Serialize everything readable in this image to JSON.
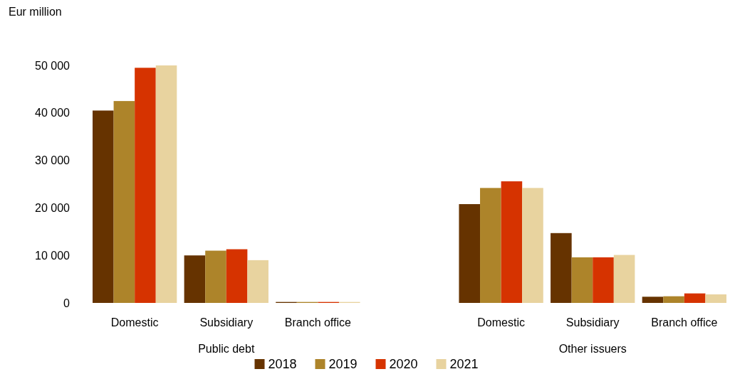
{
  "chart_data": {
    "type": "bar",
    "ylabel": "Eur million",
    "categories": [
      "Domestic",
      "Subsidiary",
      "Branch office",
      null,
      "Domestic",
      "Subsidiary",
      "Branch office"
    ],
    "series": [
      {
        "name": "2018",
        "color": "#663300",
        "values": [
          40500,
          10000,
          200,
          null,
          20800,
          14700,
          1300
        ]
      },
      {
        "name": "2019",
        "color": "#ad842a",
        "values": [
          42500,
          11000,
          200,
          null,
          24200,
          9600,
          1400
        ]
      },
      {
        "name": "2020",
        "color": "#d63300",
        "values": [
          49500,
          11300,
          200,
          null,
          25600,
          9600,
          2000
        ]
      },
      {
        "name": "2021",
        "color": "#e8d39f",
        "values": [
          50000,
          9000,
          200,
          null,
          24200,
          10100,
          1800
        ]
      }
    ],
    "annotations": [
      "Public debt",
      "Other issuers"
    ],
    "ylim": [
      0,
      50000
    ],
    "yticks": [
      {
        "value": 0,
        "label": "0"
      },
      {
        "value": 10000,
        "label": "10 000"
      },
      {
        "value": 20000,
        "label": "20 000"
      },
      {
        "value": 30000,
        "label": "30 000"
      },
      {
        "value": 40000,
        "label": "40 000"
      },
      {
        "value": 50000,
        "label": "50 000"
      }
    ],
    "legend": "bottom"
  }
}
